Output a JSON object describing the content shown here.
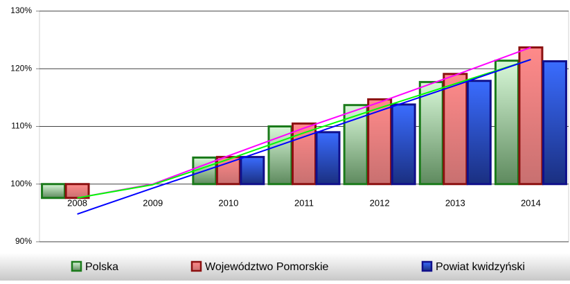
{
  "chart_data": {
    "type": "bar",
    "categories": [
      "2008",
      "2009",
      "2010",
      "2011",
      "2012",
      "2013",
      "2014"
    ],
    "series": [
      {
        "name": "Polska",
        "color": "#1a7a1a",
        "values": [
          97.6,
          100,
          104.6,
          110.0,
          113.7,
          117.7,
          121.4
        ]
      },
      {
        "name": "Województwo Pomorskie",
        "color": "#8b1010",
        "values": [
          97.6,
          100,
          104.7,
          110.5,
          114.7,
          119.1,
          123.7
        ]
      },
      {
        "name": "Powiat kwidzyński",
        "color": "#10108b",
        "values": [
          null,
          100,
          104.7,
          109.0,
          113.8,
          117.9,
          121.3
        ]
      }
    ],
    "trendlines": [
      {
        "color": "#ff00ff",
        "values": [
          97.6,
          100,
          104.9,
          109.7,
          114.2,
          118.9,
          123.7
        ]
      },
      {
        "color": "#00ff00",
        "values": [
          97.6,
          99.9,
          104.3,
          108.9,
          113.2,
          117.4,
          121.6
        ]
      },
      {
        "color": "#0000ff",
        "values": [
          94.8,
          99.3,
          103.7,
          108.2,
          112.7,
          117.1,
          121.6
        ]
      }
    ],
    "baseline": 100,
    "ylim": [
      90,
      130
    ],
    "yticks": [
      {
        "value": 90,
        "label": "90%"
      },
      {
        "value": 100,
        "label": "100%"
      },
      {
        "value": 110,
        "label": "110%"
      },
      {
        "value": 120,
        "label": "120%"
      },
      {
        "value": 130,
        "label": "130%"
      }
    ],
    "grid": true,
    "legend": "bottom"
  }
}
